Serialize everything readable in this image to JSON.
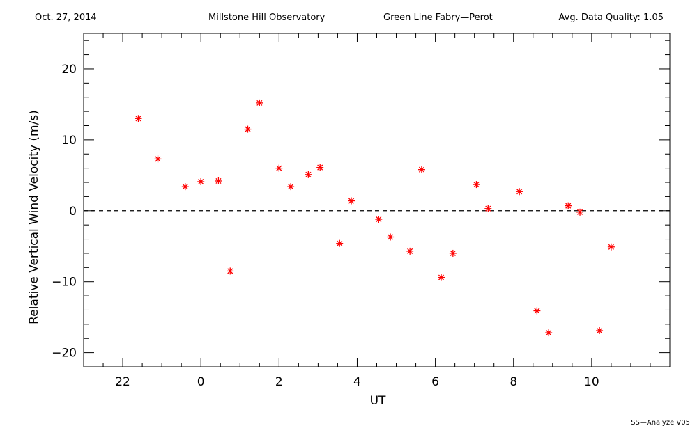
{
  "header": {
    "date": "Oct. 27, 2014",
    "observatory": "Millstone Hill Observatory",
    "instrument": "Green Line Fabry—Perot",
    "quality": "Avg. Data Quality: 1.05"
  },
  "footer": {
    "software": "SS—Analyze V05"
  },
  "colors": {
    "marker": "#ff0000",
    "axis": "#000000"
  },
  "chart_data": {
    "type": "scatter",
    "title": "",
    "xlabel": "UT",
    "ylabel": "Relative Vertical Wind Velocity (m/s)",
    "xlim": [
      21,
      36
    ],
    "ylim": [
      -22,
      25
    ],
    "x_major_ticks": [
      22,
      24,
      26,
      28,
      30,
      32,
      34
    ],
    "x_tick_labels": [
      "22",
      "0",
      "2",
      "4",
      "6",
      "8",
      "10"
    ],
    "y_major_ticks": [
      -20,
      -10,
      0,
      10,
      20
    ],
    "y_tick_labels": [
      "−20",
      "−10",
      "0",
      "10",
      "20"
    ],
    "reference_line": {
      "y": 0,
      "style": "dashed"
    },
    "marker": "asterisk",
    "series": [
      {
        "x": [
          22.4,
          22.9,
          23.6,
          24.0,
          24.45,
          24.75,
          25.2,
          25.5,
          26.0,
          26.3,
          26.75,
          27.05,
          27.55,
          27.85,
          28.55,
          28.85,
          29.35,
          29.65,
          30.15,
          30.45,
          31.05,
          31.35,
          32.15,
          32.6,
          32.9,
          33.4,
          33.7,
          34.2,
          34.5
        ],
        "y": [
          13.0,
          7.3,
          3.4,
          4.1,
          4.2,
          -8.5,
          11.5,
          15.2,
          6.0,
          3.4,
          5.1,
          6.1,
          -4.6,
          1.4,
          -1.2,
          -3.7,
          -5.7,
          5.8,
          -9.4,
          -6.0,
          3.7,
          0.3,
          2.7,
          -14.1,
          -17.2,
          0.7,
          -0.2,
          -16.9,
          -5.1
        ]
      }
    ]
  }
}
